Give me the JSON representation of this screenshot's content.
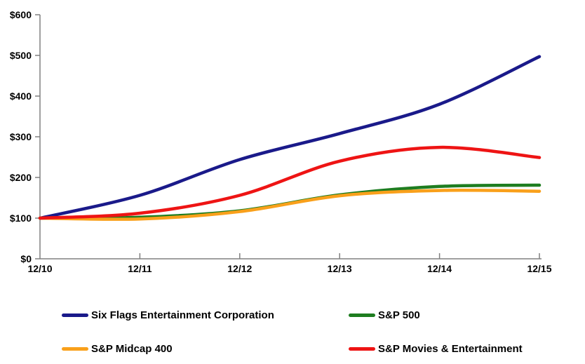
{
  "chart_data": {
    "type": "line",
    "title": "",
    "xlabel": "",
    "ylabel": "",
    "categories": [
      "12/10",
      "12/11",
      "12/12",
      "12/13",
      "12/14",
      "12/15"
    ],
    "series": [
      {
        "name": "Six Flags Entertainment Corporation",
        "color": "#1a1a8a",
        "values": [
          100,
          156,
          244,
          308,
          380,
          497
        ]
      },
      {
        "name": "S&P 500",
        "color": "#1e7d20",
        "values": [
          100,
          102,
          118,
          157,
          178,
          181
        ]
      },
      {
        "name": "S&P Midcap 400",
        "color": "#f9a01b",
        "values": [
          100,
          98,
          116,
          155,
          168,
          166
        ]
      },
      {
        "name": "S&P Movies & Entertainment",
        "color": "#ee1414",
        "values": [
          100,
          112,
          156,
          240,
          274,
          249
        ]
      }
    ],
    "ylim": [
      0,
      600
    ],
    "ytick_step": 100,
    "ytick_labels": [
      "$0",
      "$100",
      "$200",
      "$300",
      "$400",
      "$500",
      "$600"
    ],
    "grid": false,
    "axis_color": "#808080",
    "text_color": "#000000",
    "legend_position": "bottom",
    "line_width": 4.5
  }
}
